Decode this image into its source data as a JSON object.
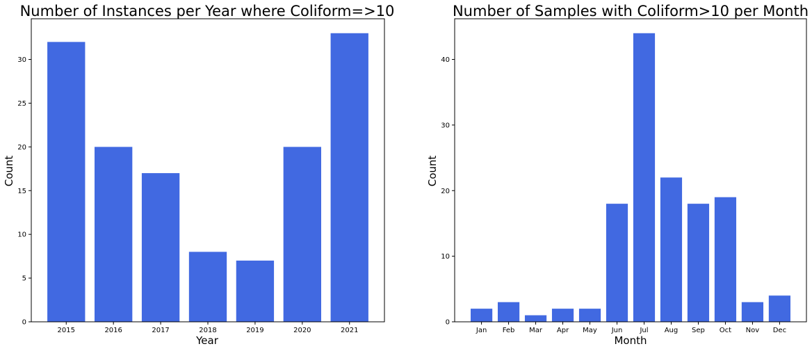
{
  "chart_data": [
    {
      "type": "bar",
      "title": "Number of Instances per Year where Coliform=>10",
      "xlabel": "Year",
      "ylabel": "Count",
      "categories": [
        "2015",
        "2016",
        "2017",
        "2018",
        "2019",
        "2020",
        "2021"
      ],
      "values": [
        32,
        20,
        17,
        8,
        7,
        20,
        33
      ],
      "ylim": [
        0,
        34.65
      ],
      "yticks": [
        0,
        5,
        10,
        15,
        20,
        25,
        30
      ],
      "color": "#4169e1",
      "grid": false
    },
    {
      "type": "bar",
      "title": "Number of Samples with Coliform>10 per Month",
      "xlabel": "Month",
      "ylabel": "Count",
      "categories": [
        "Jan",
        "Feb",
        "Mar",
        "Apr",
        "May",
        "Jun",
        "Jul",
        "Aug",
        "Sep",
        "Oct",
        "Nov",
        "Dec"
      ],
      "values": [
        2,
        3,
        1,
        2,
        2,
        18,
        44,
        22,
        18,
        19,
        3,
        4
      ],
      "ylim": [
        0,
        46.2
      ],
      "yticks": [
        0,
        10,
        20,
        30,
        40
      ],
      "color": "#4169e1",
      "grid": false
    }
  ]
}
